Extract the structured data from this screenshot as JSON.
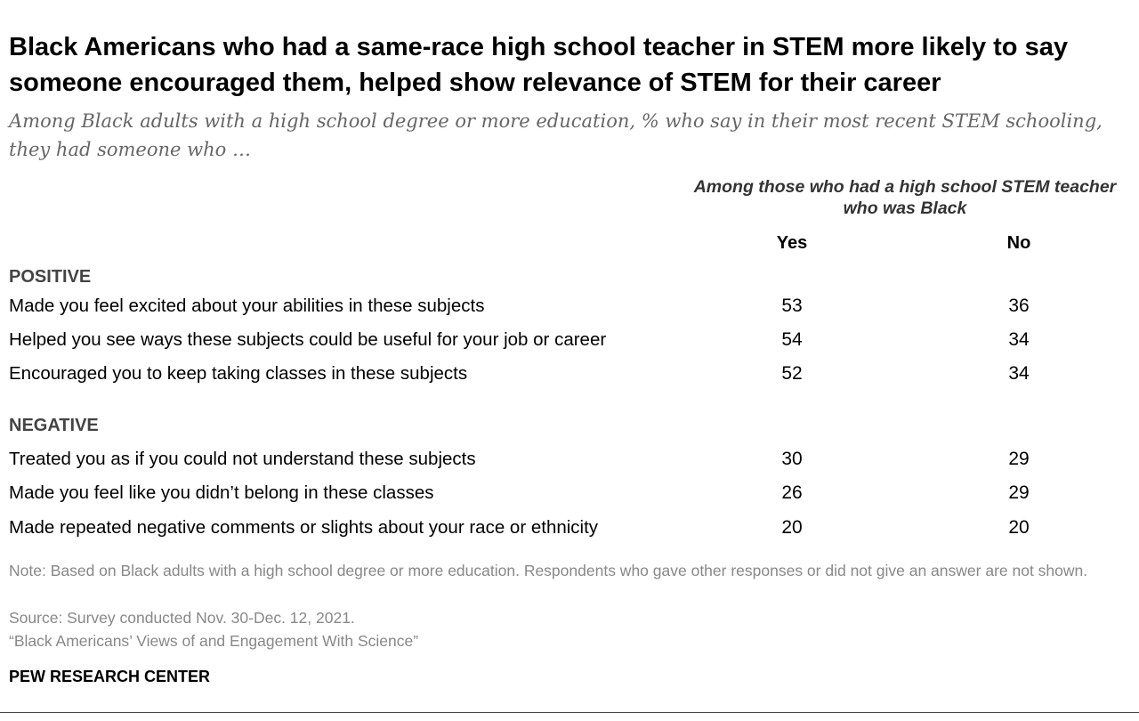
{
  "title": "Black Americans who had a same-race high school teacher in STEM more likely to say someone encouraged them, helped show relevance of STEM for their career",
  "subtitle": "Among Black adults with a high school degree or more education, % who say in their most recent STEM schooling, they had someone who …",
  "column_group": "Among those who had a high school STEM teacher who was Black",
  "columns": [
    "Yes",
    "No"
  ],
  "chart_data": {
    "type": "table",
    "column_group": "Among those who had a high school STEM teacher who was Black",
    "columns": [
      "Yes",
      "No"
    ],
    "sections": [
      {
        "name": "POSITIVE",
        "rows": [
          {
            "label": "Made you feel excited about your abilities in these subjects",
            "yes": "53",
            "no": "36"
          },
          {
            "label": "Helped you see ways these subjects could be useful for your job or career",
            "yes": "54",
            "no": "34"
          },
          {
            "label": "Encouraged you to keep taking classes in these subjects",
            "yes": "52",
            "no": "34"
          }
        ]
      },
      {
        "name": "NEGATIVE",
        "rows": [
          {
            "label": "Treated you as if you could not understand these subjects",
            "yes": "30",
            "no": "29"
          },
          {
            "label": "Made you feel like you didn’t belong in these classes",
            "yes": "26",
            "no": "29"
          },
          {
            "label": "Made repeated negative comments or slights about your race or ethnicity",
            "yes": "20",
            "no": "20"
          }
        ]
      }
    ]
  },
  "notes": {
    "note": "Note: Based on Black adults with a high school degree or more education. Respondents who gave other responses or did not give an answer are not shown.",
    "source": "Source: Survey conducted Nov. 30-Dec. 12, 2021.",
    "report": "“Black Americans’ Views of and Engagement With Science”"
  },
  "brand": "PEW RESEARCH CENTER"
}
